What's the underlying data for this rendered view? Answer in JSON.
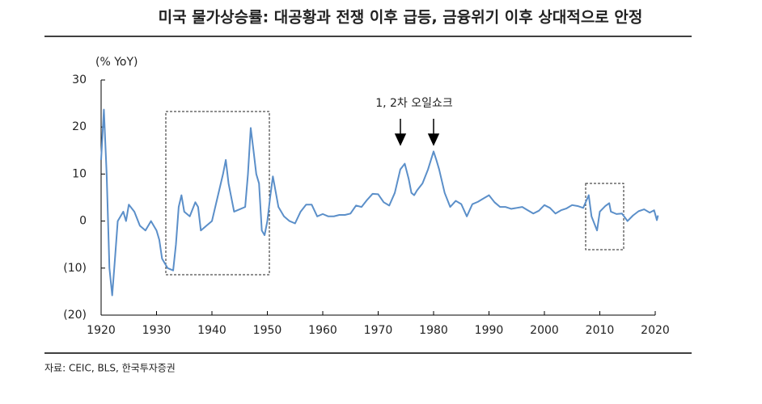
{
  "chart_data": {
    "type": "line",
    "title": "미국 물가상승률: 대공황과 전쟁 이후 급등, 금융위기 이후 상대적으로 안정",
    "y_axis_label": "(% YoY)",
    "annotation": "1, 2차 오일쇼크",
    "source": "자료: CEIC, BLS, 한국투자증권",
    "xlim": [
      1920,
      2020
    ],
    "xticks": [
      1920,
      1930,
      1940,
      1950,
      1960,
      1970,
      1980,
      1990,
      2000,
      2010,
      2020
    ],
    "ylim": [
      -20,
      30
    ],
    "yticks": [
      {
        "value": -20,
        "label": "(20)"
      },
      {
        "value": -10,
        "label": "(10)"
      },
      0,
      10,
      20,
      30
    ],
    "series": [
      {
        "color": "#5b8fc9",
        "x": [
          1920,
          1920.5,
          1921,
          1921.5,
          1922,
          1922.5,
          1923,
          1924,
          1924.5,
          1925,
          1926,
          1927,
          1928,
          1929,
          1930,
          1930.5,
          1931,
          1932,
          1933,
          1933.5,
          1934,
          1934.5,
          1935,
          1936,
          1937,
          1937.5,
          1938,
          1939,
          1940,
          1941,
          1942,
          1942.5,
          1943,
          1944,
          1945,
          1946,
          1946.5,
          1947,
          1947.5,
          1948,
          1948.5,
          1949,
          1949.5,
          1950,
          1950.5,
          1951,
          1952,
          1953,
          1954,
          1955,
          1956,
          1957,
          1958,
          1959,
          1960,
          1961,
          1962,
          1963,
          1964,
          1965,
          1966,
          1967,
          1968,
          1969,
          1970,
          1971,
          1972,
          1973,
          1974,
          1974.8,
          1975.5,
          1976,
          1976.5,
          1977,
          1978,
          1979,
          1980,
          1980.5,
          1981,
          1982,
          1983,
          1984,
          1985,
          1986,
          1987,
          1988,
          1989,
          1990,
          1991,
          1992,
          1993,
          1994,
          1995,
          1996,
          1997,
          1998,
          1999,
          2000,
          2001,
          2002,
          2003,
          2004,
          2005,
          2006,
          2007,
          2008,
          2008.5,
          2009,
          2009.5,
          2010,
          2011,
          2011.7,
          2012,
          2013,
          2014,
          2015,
          2016,
          2017,
          2018,
          2019,
          2019.8,
          2020.3,
          2020.5
        ],
        "values": [
          13,
          23.7,
          10,
          -10,
          -15.8,
          -8,
          0,
          2,
          0,
          3.5,
          2,
          -1,
          -2,
          0,
          -2,
          -4,
          -8,
          -10,
          -10.5,
          -5,
          3,
          5.5,
          2,
          1,
          4,
          3,
          -2,
          -1,
          0,
          5,
          10,
          13,
          8,
          2,
          2.5,
          3,
          10,
          19.8,
          15,
          10,
          8,
          -2,
          -3,
          0,
          5,
          9.5,
          3,
          1,
          0,
          -0.5,
          2,
          3.5,
          3.5,
          1,
          1.5,
          1,
          1,
          1.3,
          1.3,
          1.6,
          3.3,
          3,
          4.5,
          5.8,
          5.7,
          4,
          3.3,
          6,
          11,
          12.2,
          9,
          6,
          5.5,
          6.5,
          8,
          11,
          14.8,
          13,
          11,
          6,
          3,
          4.3,
          3.6,
          1,
          3.6,
          4.1,
          4.8,
          5.5,
          4,
          3,
          3,
          2.6,
          2.8,
          3,
          2.3,
          1.6,
          2.2,
          3.4,
          2.8,
          1.6,
          2.3,
          2.7,
          3.4,
          3.2,
          2.8,
          5.5,
          1,
          -0.5,
          -2,
          2,
          3.2,
          3.8,
          2,
          1.5,
          1.6,
          0,
          1.2,
          2.1,
          2.5,
          1.8,
          2.3,
          0.2,
          1.2
        ]
      }
    ]
  }
}
